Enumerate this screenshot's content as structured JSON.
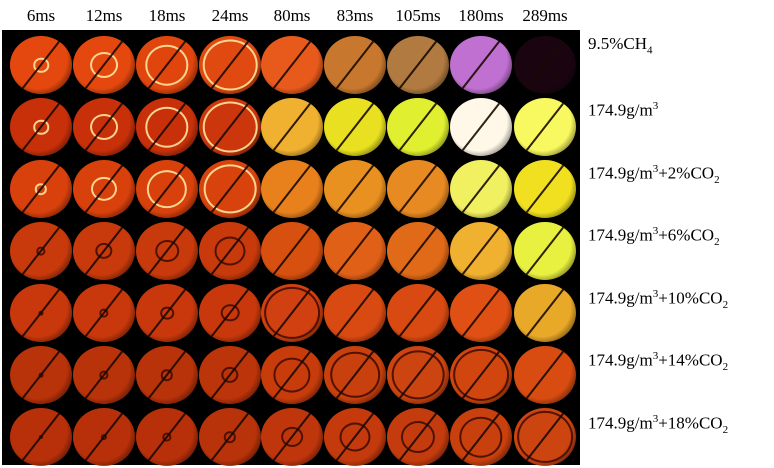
{
  "columns": [
    "6ms",
    "12ms",
    "18ms",
    "24ms",
    "80ms",
    "83ms",
    "105ms",
    "180ms",
    "289ms"
  ],
  "rows": [
    {
      "base": "9.5%CH",
      "sub": "4",
      "sup": "",
      "tail": "",
      "tail_sub": ""
    },
    {
      "base": "174.9g/m",
      "sub": "",
      "sup": "3",
      "tail": "",
      "tail_sub": ""
    },
    {
      "base": "174.9g/m",
      "sub": "",
      "sup": "3",
      "tail": "+2%CO",
      "tail_sub": "2"
    },
    {
      "base": "174.9g/m",
      "sub": "",
      "sup": "3",
      "tail": "+6%CO",
      "tail_sub": "2"
    },
    {
      "base": "174.9g/m",
      "sub": "",
      "sup": "3",
      "tail": "+10%CO",
      "tail_sub": "2"
    },
    {
      "base": "174.9g/m",
      "sub": "",
      "sup": "3",
      "tail": "+14%CO",
      "tail_sub": "2"
    },
    {
      "base": "174.9g/m",
      "sub": "",
      "sup": "3",
      "tail": "+18%CO",
      "tail_sub": "2"
    }
  ],
  "frame_colors": [
    [
      "#e5480f",
      "#e5480f",
      "#e0450e",
      "#e04a10",
      "#e85a1c",
      "#c8782e",
      "#b07a40",
      "#c070d0",
      "#1a0410"
    ],
    [
      "#c8300a",
      "#c8300a",
      "#c8300a",
      "#cc360c",
      "#f0b030",
      "#e8e020",
      "#e0f030",
      "#fff8e8",
      "#f8f860"
    ],
    [
      "#d8400c",
      "#d8400c",
      "#d8400c",
      "#d8420c",
      "#e8801c",
      "#e89020",
      "#e88a22",
      "#f0f060",
      "#f0e020"
    ],
    [
      "#c83a0c",
      "#c83a0c",
      "#c83a0c",
      "#c83a0c",
      "#d85010",
      "#e06018",
      "#e06a18",
      "#f0b030",
      "#e8f040"
    ],
    [
      "#c8380c",
      "#c8380c",
      "#c8380c",
      "#c8380c",
      "#d04010",
      "#d84a12",
      "#d84a12",
      "#e05014",
      "#e8a828"
    ],
    [
      "#b8320a",
      "#b8320a",
      "#b8320a",
      "#bc340a",
      "#c83c0c",
      "#c8400e",
      "#cc4410",
      "#d0460e",
      "#d84c12"
    ],
    [
      "#b8300a",
      "#b8300a",
      "#b8300a",
      "#b8320a",
      "#c0360c",
      "#c43a0c",
      "#c43c0e",
      "#c8400e",
      "#cc4410"
    ]
  ],
  "ring_sizes": [
    [
      0.25,
      0.45,
      0.7,
      0.88,
      0,
      0,
      0,
      0,
      0
    ],
    [
      0.25,
      0.45,
      0.7,
      0.88,
      0,
      0,
      0,
      0,
      0
    ],
    [
      0.2,
      0.42,
      0.65,
      0.85,
      0,
      0,
      0,
      0,
      0
    ],
    [
      0.15,
      0.28,
      0.38,
      0.5,
      0,
      0,
      0,
      0,
      0
    ],
    [
      0.08,
      0.15,
      0.22,
      0.3,
      0.9,
      0,
      0,
      0,
      0
    ],
    [
      0.08,
      0.15,
      0.2,
      0.28,
      0.6,
      0.8,
      0.85,
      0.9,
      0
    ],
    [
      0.05,
      0.1,
      0.15,
      0.2,
      0.35,
      0.5,
      0.55,
      0.7,
      0.9
    ]
  ]
}
